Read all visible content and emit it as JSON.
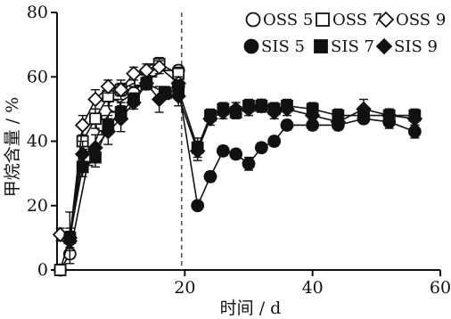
{
  "chart_data": {
    "type": "line",
    "xlabel": "时间 / d",
    "ylabel": "甲烷含量 / %",
    "xlim": [
      0,
      60
    ],
    "ylim": [
      0,
      80
    ],
    "xticks": [
      20,
      40,
      60
    ],
    "yticks": [
      0,
      20,
      40,
      60,
      80
    ],
    "vline_x": 19.5,
    "grid": false,
    "legend_position": "top-right",
    "series": [
      {
        "name": "OSS 5",
        "marker": "circle",
        "filled": false,
        "x": [
          0.5,
          2,
          5,
          7,
          9,
          12,
          15,
          19
        ],
        "y": [
          0,
          5,
          35,
          45,
          51,
          55,
          62,
          62
        ],
        "err": [
          0,
          1.5,
          2.5,
          3,
          2,
          2,
          2,
          1.5
        ]
      },
      {
        "name": "OSS 7",
        "marker": "square",
        "filled": false,
        "x": [
          0.5,
          2,
          4,
          6,
          8,
          10,
          13,
          16,
          19
        ],
        "y": [
          0,
          10,
          40,
          47,
          54,
          56,
          59,
          64,
          61
        ],
        "err": [
          0,
          8,
          4,
          3,
          3,
          3,
          2,
          2,
          2
        ]
      },
      {
        "name": "OSS 9",
        "marker": "diamond",
        "filled": false,
        "x": [
          0.5,
          2,
          4,
          6,
          8,
          10,
          12,
          14,
          16,
          19
        ],
        "y": [
          11,
          10,
          45,
          53,
          57,
          56,
          61,
          62,
          63,
          58
        ],
        "err": [
          2,
          2,
          3,
          3,
          2,
          2,
          2,
          2,
          2,
          2
        ]
      },
      {
        "name": "SIS 5",
        "marker": "circle",
        "filled": true,
        "x": [
          19,
          22,
          24,
          26,
          28,
          30,
          32,
          34,
          36,
          40,
          44,
          48,
          52,
          56
        ],
        "y": [
          57,
          20,
          29,
          37,
          36,
          33,
          38,
          40,
          45,
          45,
          45,
          47,
          46,
          43
        ],
        "err": [
          2,
          1,
          1.5,
          1.5,
          1.5,
          2,
          1.5,
          1.5,
          1.5,
          1.5,
          1.5,
          1.5,
          2,
          2
        ]
      },
      {
        "name": "SIS 7",
        "marker": "square",
        "filled": true,
        "x": [
          2,
          4,
          6,
          8,
          10,
          12,
          14,
          17,
          19,
          22,
          24,
          26,
          28,
          30,
          32,
          34,
          36,
          40,
          44,
          48,
          52,
          56
        ],
        "y": [
          10,
          32,
          35,
          45,
          49,
          53,
          58,
          55,
          56,
          38,
          48,
          50,
          49,
          51,
          51,
          50,
          51,
          50,
          48,
          48,
          48,
          48
        ],
        "err": [
          3,
          3,
          3,
          3,
          3,
          2,
          2,
          2,
          3,
          3,
          2,
          2,
          2,
          2,
          2,
          2,
          2,
          2,
          2,
          2,
          2,
          2
        ]
      },
      {
        "name": "SIS 9",
        "marker": "diamond",
        "filled": true,
        "x": [
          2,
          4,
          6,
          8,
          10,
          12,
          14,
          16,
          19,
          22,
          24,
          26,
          28,
          30,
          32,
          34,
          36,
          40,
          44,
          48,
          52,
          56
        ],
        "y": [
          9,
          36,
          38,
          43,
          47,
          52,
          58,
          53,
          54,
          37,
          47,
          49,
          50,
          50,
          51,
          49,
          50,
          48,
          46,
          50,
          48,
          47
        ],
        "err": [
          3,
          4,
          4,
          4,
          4,
          2,
          2,
          4,
          3,
          3,
          2,
          2,
          2,
          2,
          2,
          2,
          2,
          2,
          2,
          3,
          2,
          2
        ]
      }
    ]
  }
}
